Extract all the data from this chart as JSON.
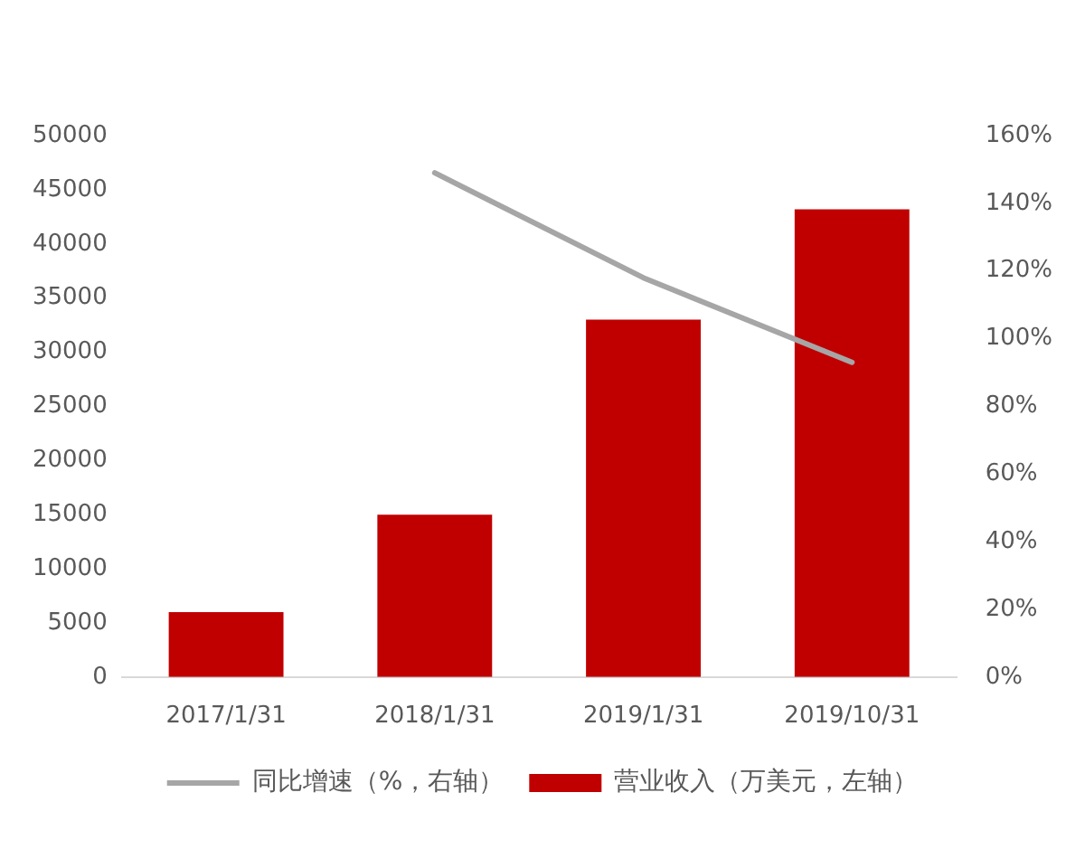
{
  "chart_data": {
    "type": "bar",
    "categories": [
      "2017/1/31",
      "2018/1/31",
      "2019/1/31",
      "2019/10/31"
    ],
    "series": [
      {
        "name": "营业收入（万美元，左轴）",
        "color": "#c00000",
        "values": [
          6000,
          15000,
          33000,
          43200
        ]
      },
      {
        "name": "同比增速（%，右轴）",
        "type": "line",
        "axis": "y2",
        "color": "#a6a6a6",
        "values": [
          null,
          149,
          118,
          93
        ]
      }
    ],
    "ylim": [
      0,
      50000
    ],
    "yticks": [
      0,
      5000,
      10000,
      15000,
      20000,
      25000,
      30000,
      35000,
      40000,
      45000,
      50000
    ],
    "y2lim": [
      0,
      160
    ],
    "y2ticks": [
      {
        "value": 0,
        "label": "0%"
      },
      {
        "value": 20,
        "label": "20%"
      },
      {
        "value": 40,
        "label": "40%"
      },
      {
        "value": 60,
        "label": "60%"
      },
      {
        "value": 80,
        "label": "80%"
      },
      {
        "value": 100,
        "label": "100%"
      },
      {
        "value": 120,
        "label": "120%"
      },
      {
        "value": 140,
        "label": "140%"
      },
      {
        "value": 160,
        "label": "160%"
      }
    ],
    "grid": false,
    "legend": "bottom",
    "marker": "none",
    "line_style": "solid"
  }
}
